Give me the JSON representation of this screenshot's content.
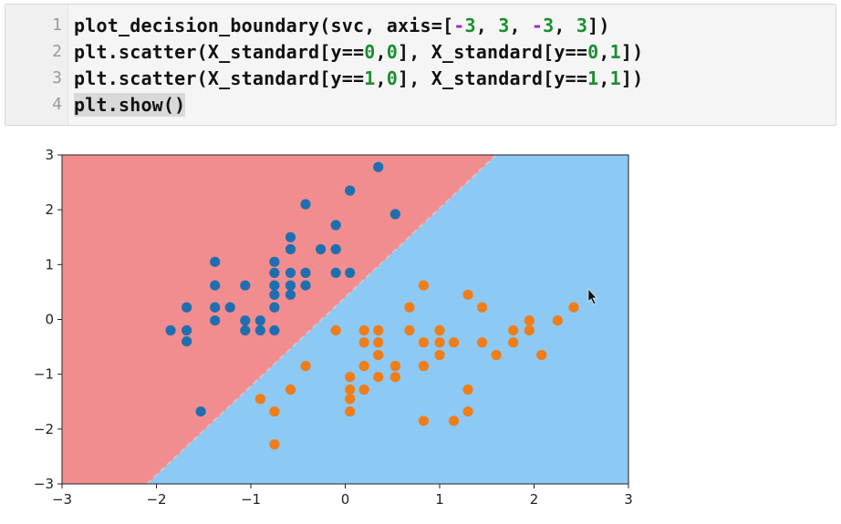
{
  "code_cell": {
    "lines": [
      {
        "number": "1",
        "parts": [
          {
            "t": "plot_decision_boundary(svc, axis=[",
            "c": ""
          },
          {
            "t": "-",
            "c": "op"
          },
          {
            "t": "3",
            "c": "num"
          },
          {
            "t": ", ",
            "c": ""
          },
          {
            "t": "3",
            "c": "num"
          },
          {
            "t": ", ",
            "c": ""
          },
          {
            "t": "-",
            "c": "op"
          },
          {
            "t": "3",
            "c": "num"
          },
          {
            "t": ", ",
            "c": ""
          },
          {
            "t": "3",
            "c": "num"
          },
          {
            "t": "])",
            "c": ""
          }
        ]
      },
      {
        "number": "2",
        "parts": [
          {
            "t": "plt.scatter(X_standard[y==",
            "c": ""
          },
          {
            "t": "0",
            "c": "num"
          },
          {
            "t": ",",
            "c": ""
          },
          {
            "t": "0",
            "c": "num"
          },
          {
            "t": "], X_standard[y==",
            "c": ""
          },
          {
            "t": "0",
            "c": "num"
          },
          {
            "t": ",",
            "c": ""
          },
          {
            "t": "1",
            "c": "num"
          },
          {
            "t": "])",
            "c": ""
          }
        ]
      },
      {
        "number": "3",
        "parts": [
          {
            "t": "plt.scatter(X_standard[y==",
            "c": ""
          },
          {
            "t": "1",
            "c": "num"
          },
          {
            "t": ",",
            "c": ""
          },
          {
            "t": "0",
            "c": "num"
          },
          {
            "t": "], X_standard[y==",
            "c": ""
          },
          {
            "t": "1",
            "c": "num"
          },
          {
            "t": ",",
            "c": ""
          },
          {
            "t": "1",
            "c": "num"
          },
          {
            "t": "])",
            "c": ""
          }
        ]
      },
      {
        "number": "4",
        "parts": [
          {
            "t": "plt.show()",
            "c": "hl"
          }
        ]
      }
    ]
  },
  "chart_data": {
    "type": "scatter",
    "xlim": [
      -3,
      3
    ],
    "ylim": [
      -3,
      3
    ],
    "x_ticks": [
      -3,
      -2,
      -1,
      0,
      1,
      2,
      3
    ],
    "y_ticks": [
      -3,
      -2,
      -1,
      0,
      1,
      2,
      3
    ],
    "x_tick_labels": [
      "−3",
      "−2",
      "−1",
      "0",
      "1",
      "2",
      "3"
    ],
    "y_tick_labels": [
      "−3",
      "−2",
      "−1",
      "0",
      "1",
      "2",
      "3"
    ],
    "decision_boundary": {
      "description": "linear boundary separating two regions",
      "points": [
        [
          -2.1,
          -3
        ],
        [
          1.6,
          3
        ]
      ],
      "region_colors": {
        "upper_left": "#f28d8f",
        "lower_right": "#8cc9f4"
      }
    },
    "series": [
      {
        "color": "#1f6fb0",
        "points": [
          [
            -1.85,
            -0.2
          ],
          [
            -1.68,
            -0.2
          ],
          [
            -1.68,
            -0.4
          ],
          [
            -1.68,
            0.22
          ],
          [
            -1.38,
            1.05
          ],
          [
            -1.38,
            0.62
          ],
          [
            -1.38,
            0.22
          ],
          [
            -1.38,
            -0.02
          ],
          [
            -1.22,
            0.22
          ],
          [
            -1.06,
            0.62
          ],
          [
            -1.06,
            -0.02
          ],
          [
            -1.06,
            -0.2
          ],
          [
            -0.9,
            -0.02
          ],
          [
            -0.9,
            -0.2
          ],
          [
            -0.75,
            1.05
          ],
          [
            -0.75,
            0.85
          ],
          [
            -0.75,
            0.62
          ],
          [
            -0.75,
            0.45
          ],
          [
            -0.75,
            0.22
          ],
          [
            -0.75,
            -0.2
          ],
          [
            -0.58,
            1.5
          ],
          [
            -0.58,
            1.28
          ],
          [
            -0.58,
            0.85
          ],
          [
            -0.58,
            0.62
          ],
          [
            -0.58,
            0.45
          ],
          [
            -0.42,
            2.1
          ],
          [
            -0.42,
            0.85
          ],
          [
            -0.42,
            0.62
          ],
          [
            -0.26,
            1.28
          ],
          [
            -0.1,
            1.72
          ],
          [
            -0.1,
            1.28
          ],
          [
            -0.1,
            0.85
          ],
          [
            0.05,
            2.35
          ],
          [
            0.05,
            0.85
          ],
          [
            0.35,
            2.78
          ],
          [
            0.53,
            1.92
          ],
          [
            -1.53,
            -1.68
          ]
        ]
      },
      {
        "color": "#f07d18",
        "points": [
          [
            -0.9,
            -1.45
          ],
          [
            -0.75,
            -1.68
          ],
          [
            -0.75,
            -2.28
          ],
          [
            -0.58,
            -1.28
          ],
          [
            -0.42,
            -0.85
          ],
          [
            -0.1,
            -0.2
          ],
          [
            0.05,
            -1.05
          ],
          [
            0.05,
            -1.28
          ],
          [
            0.05,
            -1.45
          ],
          [
            0.05,
            -1.68
          ],
          [
            0.2,
            -0.2
          ],
          [
            0.2,
            -0.42
          ],
          [
            0.2,
            -0.85
          ],
          [
            0.2,
            -1.28
          ],
          [
            0.35,
            -0.2
          ],
          [
            0.35,
            -0.42
          ],
          [
            0.35,
            -0.65
          ],
          [
            0.35,
            -1.05
          ],
          [
            0.53,
            -0.85
          ],
          [
            0.53,
            -1.05
          ],
          [
            0.68,
            -0.2
          ],
          [
            0.68,
            0.22
          ],
          [
            0.83,
            0.62
          ],
          [
            0.83,
            -0.42
          ],
          [
            0.83,
            -0.85
          ],
          [
            0.83,
            -1.85
          ],
          [
            1.0,
            -0.2
          ],
          [
            1.0,
            -0.42
          ],
          [
            1.0,
            -0.65
          ],
          [
            1.15,
            -0.42
          ],
          [
            1.15,
            -1.85
          ],
          [
            1.3,
            0.45
          ],
          [
            1.3,
            -1.28
          ],
          [
            1.3,
            -1.68
          ],
          [
            1.45,
            0.22
          ],
          [
            1.45,
            -0.42
          ],
          [
            1.6,
            -0.65
          ],
          [
            1.78,
            -0.2
          ],
          [
            1.78,
            -0.42
          ],
          [
            1.95,
            -0.02
          ],
          [
            1.95,
            -0.2
          ],
          [
            2.08,
            -0.65
          ],
          [
            2.25,
            -0.02
          ],
          [
            2.42,
            0.22
          ]
        ]
      }
    ]
  }
}
